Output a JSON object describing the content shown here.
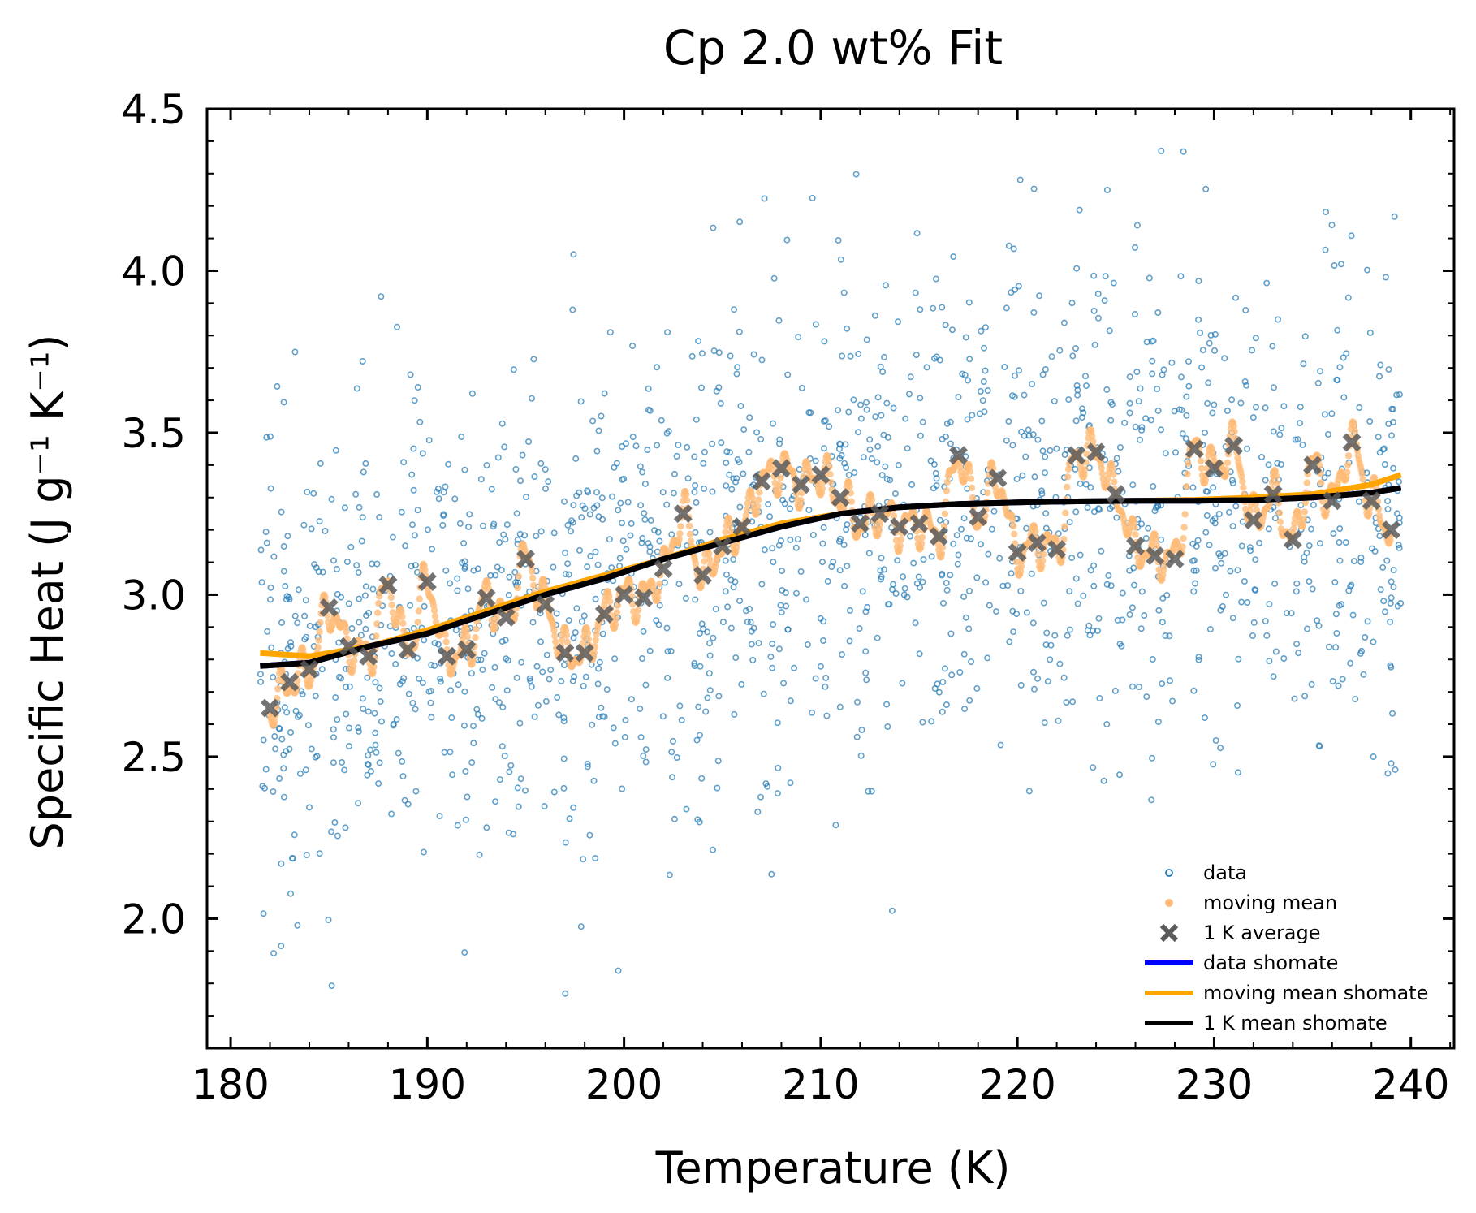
{
  "chart_data": {
    "type": "scatter",
    "title": "Cp 2.0 wt% Fit",
    "xlabel": "Temperature (K)",
    "ylabel": "Specific Heat (J g⁻¹ K⁻¹)",
    "xlim": [
      178.8,
      242.2
    ],
    "ylim": [
      1.6,
      4.5
    ],
    "xticks": [
      180,
      190,
      200,
      210,
      220,
      230,
      240
    ],
    "yticks": [
      2.0,
      2.5,
      3.0,
      3.5,
      4.0,
      4.5
    ],
    "x_tick_labels": [
      "180",
      "190",
      "200",
      "210",
      "220",
      "230",
      "240"
    ],
    "y_tick_labels": [
      "2.0",
      "2.5",
      "3.0",
      "3.5",
      "4.0",
      "4.5"
    ],
    "grid": false,
    "legend_position": "lower-right",
    "legend": [
      {
        "label": "data",
        "type": "scatter-open",
        "color": "#1f77b4"
      },
      {
        "label": "moving mean",
        "type": "scatter-filled",
        "color": "#ffbb78"
      },
      {
        "label": "1 K average",
        "type": "x-marker",
        "color": "#5a5a5a"
      },
      {
        "label": "data shomate",
        "type": "line",
        "color": "#0000ff"
      },
      {
        "label": "moving mean shomate",
        "type": "line",
        "color": "#ffa500"
      },
      {
        "label": "1 K mean shomate",
        "type": "line",
        "color": "#000000"
      }
    ],
    "series": [
      {
        "name": "data",
        "kind": "scatter",
        "description": "approx. 1700 individual measurements between 181.5 K and 239.5 K, scattered about the fit with spread of roughly ±0.5 J g⁻¹ K⁻¹ (range 1.7–4.37)",
        "x_range": [
          181.5,
          239.5
        ],
        "y_range": [
          1.7,
          4.37
        ],
        "count": 1700
      },
      {
        "name": "1 K average",
        "kind": "scatter",
        "x": [
          182,
          183,
          184,
          185,
          186,
          187,
          188,
          189,
          190,
          191,
          192,
          193,
          194,
          195,
          196,
          197,
          198,
          199,
          200,
          201,
          202,
          203,
          204,
          205,
          206,
          207,
          208,
          209,
          210,
          211,
          212,
          213,
          214,
          215,
          216,
          217,
          218,
          219,
          220,
          221,
          222,
          223,
          224,
          225,
          226,
          227,
          228,
          229,
          230,
          231,
          232,
          233,
          234,
          235,
          236,
          237,
          238,
          239
        ],
        "y": [
          2.65,
          2.73,
          2.77,
          2.96,
          2.84,
          2.81,
          3.03,
          2.83,
          3.04,
          2.81,
          2.83,
          2.99,
          2.93,
          3.11,
          2.97,
          2.82,
          2.82,
          2.94,
          3.0,
          2.99,
          3.08,
          3.25,
          3.06,
          3.15,
          3.21,
          3.35,
          3.39,
          3.34,
          3.37,
          3.3,
          3.22,
          3.25,
          3.21,
          3.22,
          3.18,
          3.43,
          3.24,
          3.36,
          3.13,
          3.16,
          3.14,
          3.43,
          3.44,
          3.31,
          3.15,
          3.12,
          3.11,
          3.45,
          3.39,
          3.46,
          3.23,
          3.31,
          3.17,
          3.4,
          3.29,
          3.47,
          3.29,
          3.2
        ]
      },
      {
        "name": "moving mean",
        "kind": "scatter",
        "description": "running mean oscillating through the 1 K averages"
      },
      {
        "name": "moving mean shomate",
        "kind": "line",
        "x": [
          181.5,
          184,
          187,
          190,
          193,
          196,
          199,
          202,
          205,
          208,
          211,
          214,
          217,
          220,
          223,
          226,
          229,
          232,
          235,
          238,
          239.5
        ],
        "y": [
          2.82,
          2.81,
          2.84,
          2.89,
          2.95,
          3.01,
          3.06,
          3.11,
          3.17,
          3.22,
          3.25,
          3.27,
          3.28,
          3.285,
          3.288,
          3.29,
          3.293,
          3.3,
          3.31,
          3.34,
          3.37
        ]
      },
      {
        "name": "1 K mean shomate",
        "kind": "line",
        "x": [
          181.5,
          184,
          187,
          190,
          193,
          196,
          199,
          202,
          205,
          208,
          211,
          214,
          217,
          220,
          223,
          226,
          229,
          232,
          235,
          238,
          239.5
        ],
        "y": [
          2.78,
          2.79,
          2.84,
          2.88,
          2.94,
          3.0,
          3.05,
          3.11,
          3.16,
          3.21,
          3.25,
          3.27,
          3.28,
          3.285,
          3.288,
          3.29,
          3.29,
          3.292,
          3.3,
          3.315,
          3.33
        ]
      },
      {
        "name": "data shomate",
        "kind": "line",
        "x": [
          181.5,
          184,
          187,
          190,
          193,
          196,
          199,
          202,
          205,
          208,
          211,
          214,
          217,
          220,
          223,
          226,
          229,
          232,
          235,
          238,
          239.5
        ],
        "y": [
          2.78,
          2.79,
          2.84,
          2.88,
          2.94,
          3.0,
          3.05,
          3.11,
          3.16,
          3.21,
          3.25,
          3.27,
          3.28,
          3.285,
          3.288,
          3.29,
          3.29,
          3.292,
          3.3,
          3.315,
          3.33
        ]
      }
    ]
  }
}
